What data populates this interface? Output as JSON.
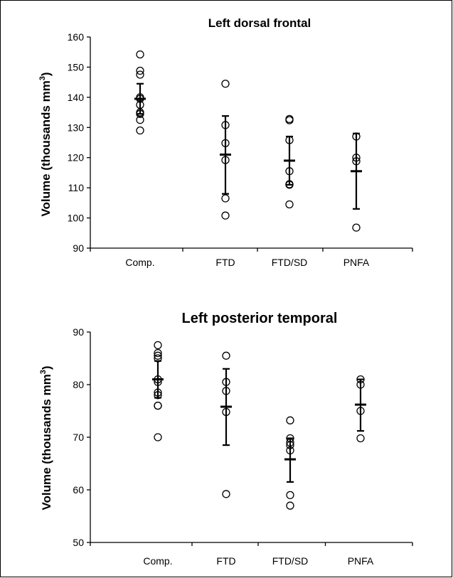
{
  "chart_data": [
    {
      "type": "scatter",
      "title": "Left dorsal frontal",
      "xlabel": "",
      "ylabel": "Volume (thousands mm",
      "ylabel_sup": "3",
      "ylabel_close": ")",
      "categories": [
        "Comp.",
        "FTD",
        "FTD/SD",
        "PNFA"
      ],
      "ylim": [
        90,
        160
      ],
      "yticks": [
        90,
        100,
        110,
        120,
        130,
        140,
        150,
        160
      ],
      "points": [
        [
          154.2,
          148.8,
          147.5,
          140.0,
          139.5,
          137.5,
          135.0,
          134.5,
          132.5,
          129.0
        ],
        [
          144.5,
          130.8,
          124.8,
          119.2,
          106.5,
          100.8
        ],
        [
          132.8,
          132.4,
          125.8,
          115.5,
          111.2,
          111.0,
          104.5
        ],
        [
          127.0,
          120.0,
          118.8,
          96.8
        ]
      ],
      "mean": [
        139.5,
        121.0,
        119.0,
        115.5
      ],
      "err_low": [
        134.5,
        108.0,
        111.0,
        103.0
      ],
      "err_high": [
        144.5,
        133.8,
        127.0,
        128.0
      ],
      "grid": false
    },
    {
      "type": "scatter",
      "title": "Left posterior temporal",
      "xlabel": "",
      "ylabel": "Volume (thousands mm",
      "ylabel_sup": "3",
      "ylabel_close": ")",
      "categories": [
        "Comp.",
        "FTD",
        "FTD/SD",
        "PNFA"
      ],
      "ylim": [
        50,
        90
      ],
      "yticks": [
        50,
        60,
        70,
        80,
        90
      ],
      "points": [
        [
          87.5,
          86.0,
          85.5,
          85.0,
          81.0,
          80.5,
          78.5,
          78.0,
          76.0,
          76.0,
          70.0
        ],
        [
          85.5,
          80.5,
          78.8,
          74.8,
          59.2
        ],
        [
          73.2,
          69.8,
          69.0,
          68.5,
          67.5,
          59.0,
          57.0
        ],
        [
          81.0,
          80.0,
          75.0,
          69.8
        ]
      ],
      "mean": [
        81.0,
        75.8,
        65.8,
        76.2
      ],
      "err_low": [
        77.5,
        68.5,
        61.5,
        71.2
      ],
      "err_high": [
        84.5,
        83.0,
        69.8,
        81.0
      ],
      "grid": false
    }
  ]
}
